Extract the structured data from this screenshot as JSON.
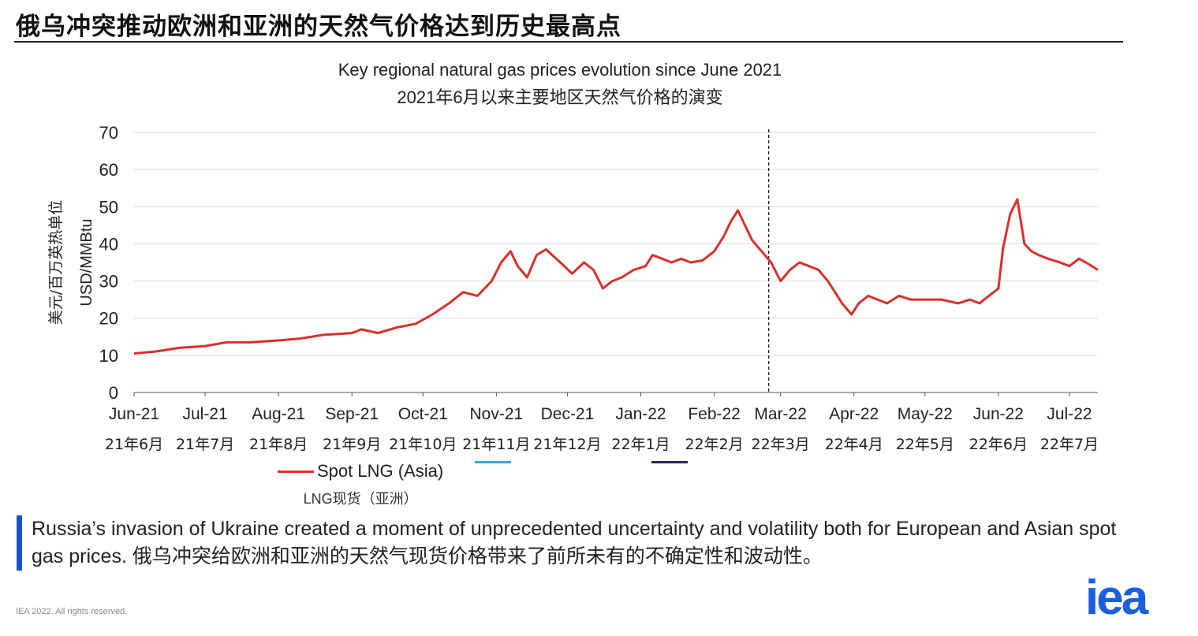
{
  "slide": {
    "title": "俄乌冲突推动欧洲和亚洲的天然气价格达到历史最高点",
    "callout_en": "Russia’s invasion of Ukraine created a moment of unprecedented uncertainty and volatility both for European and Asian spot gas prices.",
    "callout_cn": "俄乌冲突给欧洲和亚洲的天然气现货价格带来了前所未有的不确定性和波动性。",
    "footer": "IEA 2022. All rights reserved.",
    "logo": "iea",
    "accent_color": "#1a4fd0"
  },
  "chart_data": {
    "type": "line",
    "title": "Key regional natural gas prices evolution since June 2021",
    "subtitle": "2021年6月以来主要地区天然气价格的演变",
    "ylabel": "USD/MMBtu",
    "ylabel_cn": "美元/百万英热单位",
    "ylim": [
      0,
      70
    ],
    "yticks": [
      0,
      10,
      20,
      30,
      40,
      50,
      60,
      70
    ],
    "grid": "horizontal",
    "legend_position": "bottom",
    "x_start": "2021-06-01",
    "x_end": "2022-07-13",
    "month_ticks": [
      {
        "date": "2021-06-01",
        "label": "Jun-21",
        "label_cn": "21年6月"
      },
      {
        "date": "2021-07-01",
        "label": "Jul-21",
        "label_cn": "21年7月"
      },
      {
        "date": "2021-08-01",
        "label": "Aug-21",
        "label_cn": "21年8月"
      },
      {
        "date": "2021-09-01",
        "label": "Sep-21",
        "label_cn": "21年9月"
      },
      {
        "date": "2021-10-01",
        "label": "Oct-21",
        "label_cn": "21年10月"
      },
      {
        "date": "2021-11-01",
        "label": "Nov-21",
        "label_cn": "21年11月"
      },
      {
        "date": "2021-12-01",
        "label": "Dec-21",
        "label_cn": "21年12月"
      },
      {
        "date": "2022-01-01",
        "label": "Jan-22",
        "label_cn": "22年1月"
      },
      {
        "date": "2022-02-01",
        "label": "Feb-22",
        "label_cn": "22年2月"
      },
      {
        "date": "2022-03-01",
        "label": "Mar-22",
        "label_cn": "22年3月"
      },
      {
        "date": "2022-04-01",
        "label": "Apr-22",
        "label_cn": "22年4月"
      },
      {
        "date": "2022-05-01",
        "label": "May-22",
        "label_cn": "22年5月"
      },
      {
        "date": "2022-06-01",
        "label": "Jun-22",
        "label_cn": "22年6月"
      },
      {
        "date": "2022-07-01",
        "label": "Jul-22",
        "label_cn": "22年7月"
      }
    ],
    "event_line": {
      "date": "2022-02-24",
      "style": "dashed"
    },
    "series": [
      {
        "name": "Spot LNG (Asia)",
        "name_cn": "LNG现货（亚洲）",
        "color": "#d9302c",
        "points": [
          [
            "2021-06-01",
            10.5
          ],
          [
            "2021-06-10",
            11
          ],
          [
            "2021-06-20",
            12
          ],
          [
            "2021-07-01",
            12.5
          ],
          [
            "2021-07-10",
            13.5
          ],
          [
            "2021-07-20",
            13.5
          ],
          [
            "2021-08-01",
            14
          ],
          [
            "2021-08-10",
            14.5
          ],
          [
            "2021-08-20",
            15.5
          ],
          [
            "2021-09-01",
            16
          ],
          [
            "2021-09-05",
            17
          ],
          [
            "2021-09-12",
            16
          ],
          [
            "2021-09-20",
            17.5
          ],
          [
            "2021-09-28",
            18.5
          ],
          [
            "2021-10-05",
            21
          ],
          [
            "2021-10-12",
            24
          ],
          [
            "2021-10-18",
            27
          ],
          [
            "2021-10-24",
            26
          ],
          [
            "2021-10-30",
            30
          ],
          [
            "2021-11-03",
            35
          ],
          [
            "2021-11-07",
            38
          ],
          [
            "2021-11-10",
            34
          ],
          [
            "2021-11-14",
            31
          ],
          [
            "2021-11-18",
            37
          ],
          [
            "2021-11-22",
            38.5
          ],
          [
            "2021-11-28",
            35
          ],
          [
            "2021-12-03",
            32
          ],
          [
            "2021-12-08",
            35
          ],
          [
            "2021-12-12",
            33
          ],
          [
            "2021-12-16",
            28
          ],
          [
            "2021-12-20",
            30
          ],
          [
            "2021-12-24",
            31
          ],
          [
            "2021-12-29",
            33
          ],
          [
            "2022-01-03",
            34
          ],
          [
            "2022-01-06",
            37
          ],
          [
            "2022-01-10",
            36
          ],
          [
            "2022-01-14",
            35
          ],
          [
            "2022-01-18",
            36
          ],
          [
            "2022-01-22",
            35
          ],
          [
            "2022-01-27",
            35.5
          ],
          [
            "2022-02-01",
            38
          ],
          [
            "2022-02-05",
            42
          ],
          [
            "2022-02-08",
            46
          ],
          [
            "2022-02-11",
            49
          ],
          [
            "2022-02-14",
            45
          ],
          [
            "2022-02-17",
            41
          ],
          [
            "2022-02-21",
            38
          ],
          [
            "2022-02-25",
            35
          ],
          [
            "2022-03-01",
            30
          ],
          [
            "2022-03-05",
            33
          ],
          [
            "2022-03-09",
            35
          ],
          [
            "2022-03-13",
            34
          ],
          [
            "2022-03-17",
            33
          ],
          [
            "2022-03-21",
            30
          ],
          [
            "2022-03-24",
            27
          ],
          [
            "2022-03-27",
            24
          ],
          [
            "2022-03-31",
            21
          ],
          [
            "2022-04-03",
            24
          ],
          [
            "2022-04-07",
            26
          ],
          [
            "2022-04-11",
            25
          ],
          [
            "2022-04-15",
            24
          ],
          [
            "2022-04-20",
            26
          ],
          [
            "2022-04-25",
            25
          ],
          [
            "2022-05-01",
            25
          ],
          [
            "2022-05-08",
            25
          ],
          [
            "2022-05-15",
            24
          ],
          [
            "2022-05-20",
            25
          ],
          [
            "2022-05-24",
            24
          ],
          [
            "2022-05-28",
            26
          ],
          [
            "2022-06-01",
            28
          ],
          [
            "2022-06-03",
            39
          ],
          [
            "2022-06-06",
            48
          ],
          [
            "2022-06-09",
            52
          ],
          [
            "2022-06-12",
            40
          ],
          [
            "2022-06-15",
            38
          ],
          [
            "2022-06-18",
            37
          ],
          [
            "2022-06-22",
            36
          ],
          [
            "2022-06-27",
            35
          ],
          [
            "2022-07-01",
            34
          ],
          [
            "2022-07-05",
            36
          ],
          [
            "2022-07-08",
            35
          ],
          [
            "2022-07-13",
            33
          ]
        ]
      }
    ]
  }
}
